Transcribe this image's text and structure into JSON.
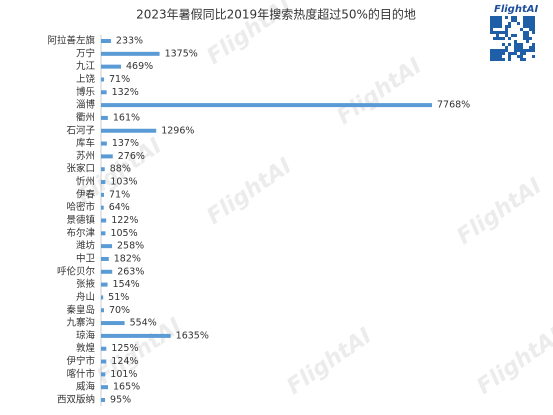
{
  "logo": "FlightAI",
  "watermark": "FlightAI",
  "chart_data": {
    "type": "bar",
    "orientation": "horizontal",
    "title": "2023年暑假同比2019年搜索热度超过50%的目的地",
    "color": "#5b9bd5",
    "categories": [
      "阿拉善左旗",
      "万宁",
      "九江",
      "上饶",
      "博乐",
      "淄博",
      "衢州",
      "石河子",
      "库车",
      "苏州",
      "张家口",
      "忻州",
      "伊春",
      "哈密市",
      "景德镇",
      "布尔津",
      "潍坊",
      "中卫",
      "呼伦贝尔",
      "张掖",
      "舟山",
      "秦皇岛",
      "九寨沟",
      "琼海",
      "敦煌",
      "伊宁市",
      "喀什市",
      "威海",
      "西双版纳"
    ],
    "values": [
      233,
      1375,
      469,
      71,
      132,
      7768,
      161,
      1296,
      137,
      276,
      88,
      103,
      71,
      64,
      122,
      105,
      258,
      182,
      263,
      154,
      51,
      70,
      554,
      1635,
      125,
      124,
      101,
      165,
      95
    ],
    "value_labels": [
      "233%",
      "1375%",
      "469%",
      "71%",
      "132%",
      "7768%",
      "161%",
      "1296%",
      "137%",
      "276%",
      "88%",
      "103%",
      "71%",
      "64%",
      "122%",
      "105%",
      "258%",
      "182%",
      "263%",
      "154%",
      "51%",
      "70%",
      "554%",
      "1635%",
      "125%",
      "124%",
      "101%",
      "165%",
      "95%"
    ]
  }
}
